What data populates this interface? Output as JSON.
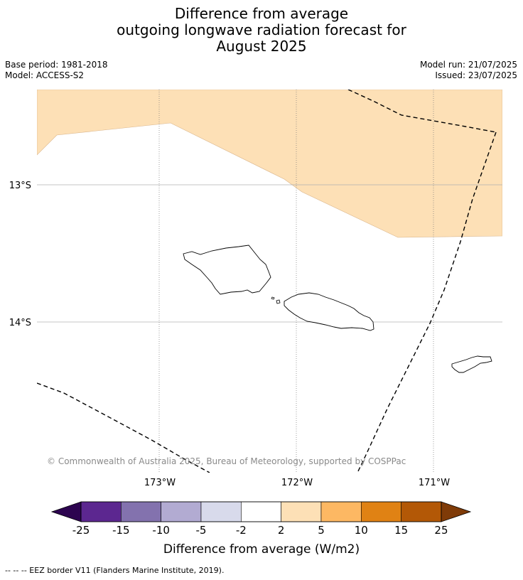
{
  "title": {
    "line1": "Difference from average",
    "line2": "outgoing longwave radiation forecast for",
    "line3": "August 2025"
  },
  "meta": {
    "base_period": "Base period: 1981-2018",
    "model": "Model: ACCESS-S2",
    "model_run": "Model run: 21/07/2025",
    "issued": "Issued: 23/07/2025"
  },
  "map": {
    "lat_labels": [
      "13°S",
      "14°S"
    ],
    "lon_labels": [
      "173°W",
      "172°W",
      "171°W"
    ],
    "copyright": "© Commonwealth of Australia 2025, Bureau of Meteorology, supported by COSPPac",
    "anomaly_fill_color": "#fde0b6",
    "eez_line_color": "#000000"
  },
  "colorbar": {
    "label": "Difference from average (W/m2)",
    "ticks": [
      "-25",
      "-15",
      "-10",
      "-5",
      "-2",
      "2",
      "5",
      "10",
      "15",
      "25"
    ],
    "low_extend_color": "#2d0450",
    "high_extend_color": "#7f3b08",
    "colors": [
      "#5c2790",
      "#8372ae",
      "#b2abd2",
      "#d8daeb",
      "#ffffff",
      "#fde0b6",
      "#fdb863",
      "#e08214",
      "#b35806"
    ]
  },
  "footer": {
    "legend": "--  --  -- EEZ border V11 (Flanders Marine Institute, 2019)."
  }
}
